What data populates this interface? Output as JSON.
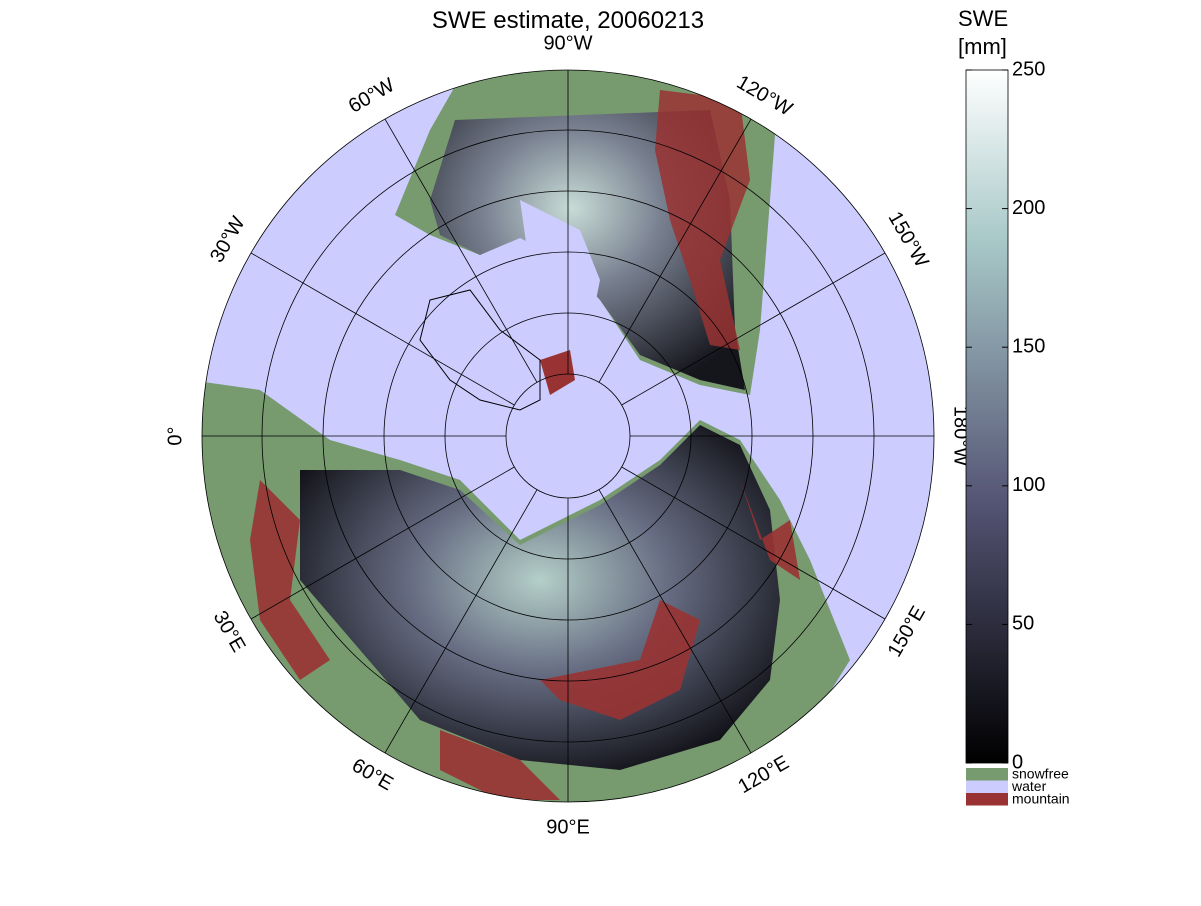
{
  "title": "SWE estimate, 20060213",
  "longitude_labels": [
    "90°W",
    "120°W",
    "150°W",
    "180°W",
    "150°E",
    "120°E",
    "90°E",
    "60°E",
    "30°E",
    "0°",
    "30°W",
    "60°W"
  ],
  "colorbar": {
    "label": [
      "SWE",
      "[mm]"
    ],
    "lim": [
      0,
      250
    ],
    "ticks": [
      0,
      50,
      100,
      150,
      200,
      250
    ],
    "legend": [
      {
        "name": "snowfree",
        "color": "#779a6f"
      },
      {
        "name": "water",
        "color": "#ccccff"
      },
      {
        "name": "mountain",
        "color": "#993333"
      }
    ]
  }
}
